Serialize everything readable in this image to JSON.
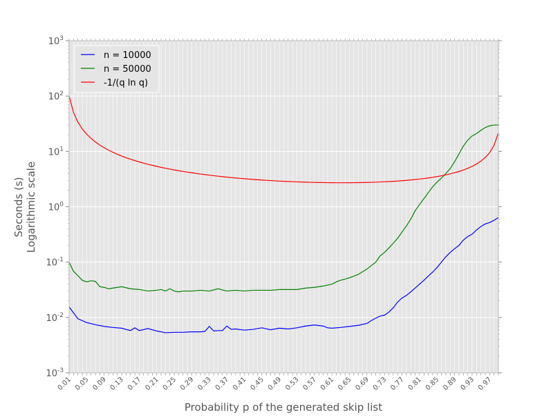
{
  "chart_data": {
    "type": "line",
    "xlabel": "Probability p of the generated skip list",
    "ylabel_line1": "Seconds (s)",
    "ylabel_line2": "Logarithmic scale",
    "yscale": "log",
    "ylim": [
      0.001,
      1000
    ],
    "xlim": [
      0.01,
      0.99
    ],
    "grid": true,
    "legend_position": "top-left",
    "y_ticks": [
      {
        "base": "10",
        "exp": "-3",
        "value": 0.001
      },
      {
        "base": "10",
        "exp": "-2",
        "value": 0.01
      },
      {
        "base": "10",
        "exp": "-1",
        "value": 0.1
      },
      {
        "base": "10",
        "exp": "0",
        "value": 1
      },
      {
        "base": "10",
        "exp": "1",
        "value": 10
      },
      {
        "base": "10",
        "exp": "2",
        "value": 100
      },
      {
        "base": "10",
        "exp": "3",
        "value": 1000
      }
    ],
    "x_tick_labels": [
      "0.01",
      "0.05",
      "0.09",
      "0.13",
      "0.17",
      "0.21",
      "0.25",
      "0.29",
      "0.33",
      "0.37",
      "0.41",
      "0.45",
      "0.49",
      "0.53",
      "0.57",
      "0.61",
      "0.65",
      "0.69",
      "0.73",
      "0.77",
      "0.81",
      "0.85",
      "0.89",
      "0.93",
      "0.97"
    ],
    "series": [
      {
        "name": "n = 10000",
        "color": "#0000ff",
        "points": [
          [
            0.01,
            0.0155
          ],
          [
            0.03,
            0.0095
          ],
          [
            0.05,
            0.0081
          ],
          [
            0.07,
            0.0074
          ],
          [
            0.09,
            0.0069
          ],
          [
            0.11,
            0.0066
          ],
          [
            0.13,
            0.0064
          ],
          [
            0.15,
            0.0058
          ],
          [
            0.16,
            0.0065
          ],
          [
            0.17,
            0.0058
          ],
          [
            0.19,
            0.0063
          ],
          [
            0.21,
            0.0057
          ],
          [
            0.23,
            0.0053
          ],
          [
            0.25,
            0.0054
          ],
          [
            0.27,
            0.0054
          ],
          [
            0.29,
            0.0055
          ],
          [
            0.31,
            0.0055
          ],
          [
            0.32,
            0.0056
          ],
          [
            0.33,
            0.0069
          ],
          [
            0.34,
            0.0057
          ],
          [
            0.35,
            0.0058
          ],
          [
            0.36,
            0.0058
          ],
          [
            0.37,
            0.007
          ],
          [
            0.38,
            0.0061
          ],
          [
            0.39,
            0.0062
          ],
          [
            0.41,
            0.0059
          ],
          [
            0.43,
            0.0061
          ],
          [
            0.45,
            0.0065
          ],
          [
            0.47,
            0.006
          ],
          [
            0.49,
            0.0064
          ],
          [
            0.51,
            0.0062
          ],
          [
            0.53,
            0.0065
          ],
          [
            0.55,
            0.007
          ],
          [
            0.57,
            0.0073
          ],
          [
            0.59,
            0.007
          ],
          [
            0.6,
            0.0065
          ],
          [
            0.61,
            0.0064
          ],
          [
            0.63,
            0.0066
          ],
          [
            0.65,
            0.0069
          ],
          [
            0.67,
            0.0072
          ],
          [
            0.69,
            0.0078
          ],
          [
            0.7,
            0.0088
          ],
          [
            0.71,
            0.0097
          ],
          [
            0.72,
            0.0106
          ],
          [
            0.73,
            0.011
          ],
          [
            0.74,
            0.0125
          ],
          [
            0.75,
            0.015
          ],
          [
            0.76,
            0.019
          ],
          [
            0.77,
            0.0225
          ],
          [
            0.78,
            0.025
          ],
          [
            0.79,
            0.029
          ],
          [
            0.8,
            0.034
          ],
          [
            0.81,
            0.04
          ],
          [
            0.82,
            0.047
          ],
          [
            0.83,
            0.056
          ],
          [
            0.84,
            0.066
          ],
          [
            0.85,
            0.08
          ],
          [
            0.86,
            0.1
          ],
          [
            0.87,
            0.125
          ],
          [
            0.88,
            0.15
          ],
          [
            0.89,
            0.175
          ],
          [
            0.9,
            0.2
          ],
          [
            0.91,
            0.25
          ],
          [
            0.92,
            0.29
          ],
          [
            0.93,
            0.32
          ],
          [
            0.94,
            0.38
          ],
          [
            0.95,
            0.44
          ],
          [
            0.96,
            0.49
          ],
          [
            0.97,
            0.52
          ],
          [
            0.98,
            0.57
          ],
          [
            0.99,
            0.64
          ]
        ]
      },
      {
        "name": "n = 50000",
        "color": "#008000",
        "points": [
          [
            0.01,
            0.1
          ],
          [
            0.02,
            0.068
          ],
          [
            0.03,
            0.057
          ],
          [
            0.04,
            0.047
          ],
          [
            0.05,
            0.044
          ],
          [
            0.06,
            0.046
          ],
          [
            0.07,
            0.045
          ],
          [
            0.08,
            0.036
          ],
          [
            0.09,
            0.035
          ],
          [
            0.1,
            0.033
          ],
          [
            0.11,
            0.034
          ],
          [
            0.12,
            0.035
          ],
          [
            0.13,
            0.036
          ],
          [
            0.15,
            0.033
          ],
          [
            0.17,
            0.032
          ],
          [
            0.19,
            0.03
          ],
          [
            0.21,
            0.031
          ],
          [
            0.22,
            0.032
          ],
          [
            0.23,
            0.03
          ],
          [
            0.24,
            0.033
          ],
          [
            0.25,
            0.03
          ],
          [
            0.26,
            0.029
          ],
          [
            0.27,
            0.03
          ],
          [
            0.29,
            0.03
          ],
          [
            0.31,
            0.031
          ],
          [
            0.33,
            0.03
          ],
          [
            0.35,
            0.033
          ],
          [
            0.37,
            0.03
          ],
          [
            0.39,
            0.031
          ],
          [
            0.41,
            0.03
          ],
          [
            0.43,
            0.031
          ],
          [
            0.45,
            0.031
          ],
          [
            0.47,
            0.031
          ],
          [
            0.49,
            0.032
          ],
          [
            0.51,
            0.032
          ],
          [
            0.53,
            0.032
          ],
          [
            0.55,
            0.034
          ],
          [
            0.57,
            0.035
          ],
          [
            0.59,
            0.037
          ],
          [
            0.61,
            0.04
          ],
          [
            0.62,
            0.044
          ],
          [
            0.63,
            0.047
          ],
          [
            0.65,
            0.052
          ],
          [
            0.67,
            0.06
          ],
          [
            0.69,
            0.075
          ],
          [
            0.71,
            0.1
          ],
          [
            0.72,
            0.13
          ],
          [
            0.73,
            0.15
          ],
          [
            0.74,
            0.18
          ],
          [
            0.75,
            0.22
          ],
          [
            0.76,
            0.27
          ],
          [
            0.77,
            0.35
          ],
          [
            0.78,
            0.45
          ],
          [
            0.79,
            0.6
          ],
          [
            0.8,
            0.85
          ],
          [
            0.81,
            1.1
          ],
          [
            0.82,
            1.4
          ],
          [
            0.83,
            1.8
          ],
          [
            0.84,
            2.3
          ],
          [
            0.85,
            2.8
          ],
          [
            0.86,
            3.3
          ],
          [
            0.87,
            4.0
          ],
          [
            0.88,
            4.9
          ],
          [
            0.89,
            6.5
          ],
          [
            0.9,
            9.0
          ],
          [
            0.91,
            12.5
          ],
          [
            0.92,
            16.0
          ],
          [
            0.93,
            19.0
          ],
          [
            0.94,
            21.0
          ],
          [
            0.95,
            24.0
          ],
          [
            0.96,
            27.0
          ],
          [
            0.97,
            29.0
          ],
          [
            0.98,
            30.0
          ],
          [
            0.99,
            30.0
          ]
        ]
      },
      {
        "name": "-1/(q ln q)",
        "color": "#ff0000",
        "formula": "-1/(q ln q)",
        "x_range": [
          0.01,
          0.99
        ]
      }
    ]
  }
}
